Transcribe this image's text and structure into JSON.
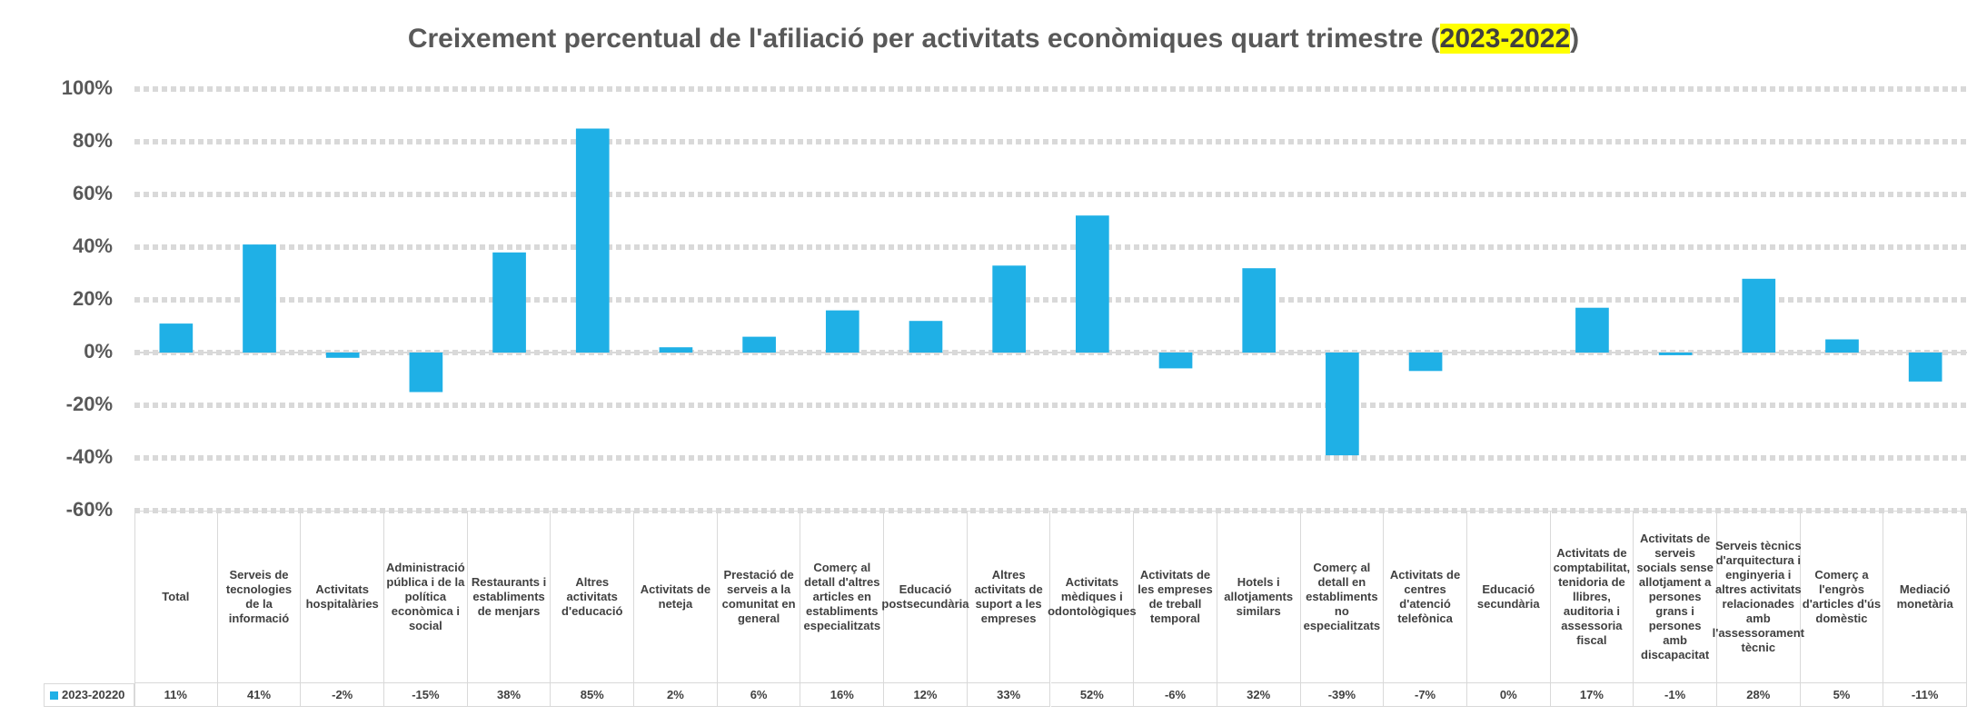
{
  "chart_data": {
    "type": "bar",
    "title": [
      "Creixement percentual  de l'afiliació per activitats econòmiques quart trimestre  (",
      "2023-2022",
      ")"
    ],
    "categories": [
      "Total",
      "Serveis de tecnologies de la informació",
      "Activitats hospitalàries",
      "Administració pública i de la política econòmica i social",
      "Restaurants i establiments de menjars",
      "Altres activitats d'educació",
      "Activitats de neteja",
      "Prestació de serveis a la comunitat en general",
      "Comerç al detall d'altres articles en establiments especialitzats",
      "Educació postsecundària",
      "Altres activitats de suport a les empreses",
      "Activitats mèdiques i odontològiques",
      "Activitats de les empreses de treball temporal",
      "Hotels i allotjaments similars",
      "Comerç al detall en establiments no especialitzats",
      "Activitats de centres d'atenció telefònica",
      "Educació secundària",
      "Activitats de comptabilitat, tenidoria de llibres, auditoria i assessoria fiscal",
      "Activitats de serveis socials sense allotjament a persones grans i persones amb discapacitat",
      "Serveis tècnics d'arquitectura i enginyeria i altres activitats relacionades amb l'assessorament tècnic",
      "Comerç a l'engròs d'articles d'ús domèstic",
      "Mediació monetària"
    ],
    "series": [
      {
        "name": "2023-20220",
        "color": "#1fb0e6",
        "values": [
          11,
          41,
          -2,
          -15,
          38,
          85,
          2,
          6,
          16,
          12,
          33,
          52,
          -6,
          32,
          -39,
          -7,
          0,
          17,
          -1,
          28,
          5,
          -11
        ],
        "value_labels": [
          "11%",
          "41%",
          "-2%",
          "-15%",
          "38%",
          "85%",
          "2%",
          "6%",
          "16%",
          "12%",
          "33%",
          "52%",
          "-6%",
          "32%",
          "-39%",
          "-7%",
          "0%",
          "17%",
          "-1%",
          "28%",
          "5%",
          "-11%"
        ]
      }
    ],
    "ylim": [
      -60,
      100
    ],
    "yticks": [
      {
        "value": -60,
        "label": "-60%"
      },
      {
        "value": -40,
        "label": "-40%"
      },
      {
        "value": -20,
        "label": "-20%"
      },
      {
        "value": 0,
        "label": "0%"
      },
      {
        "value": 20,
        "label": "20%"
      },
      {
        "value": 40,
        "label": "40%"
      },
      {
        "value": 60,
        "label": "60%"
      },
      {
        "value": 80,
        "label": "80%"
      },
      {
        "value": 100,
        "label": "100%"
      }
    ],
    "grid": true
  }
}
